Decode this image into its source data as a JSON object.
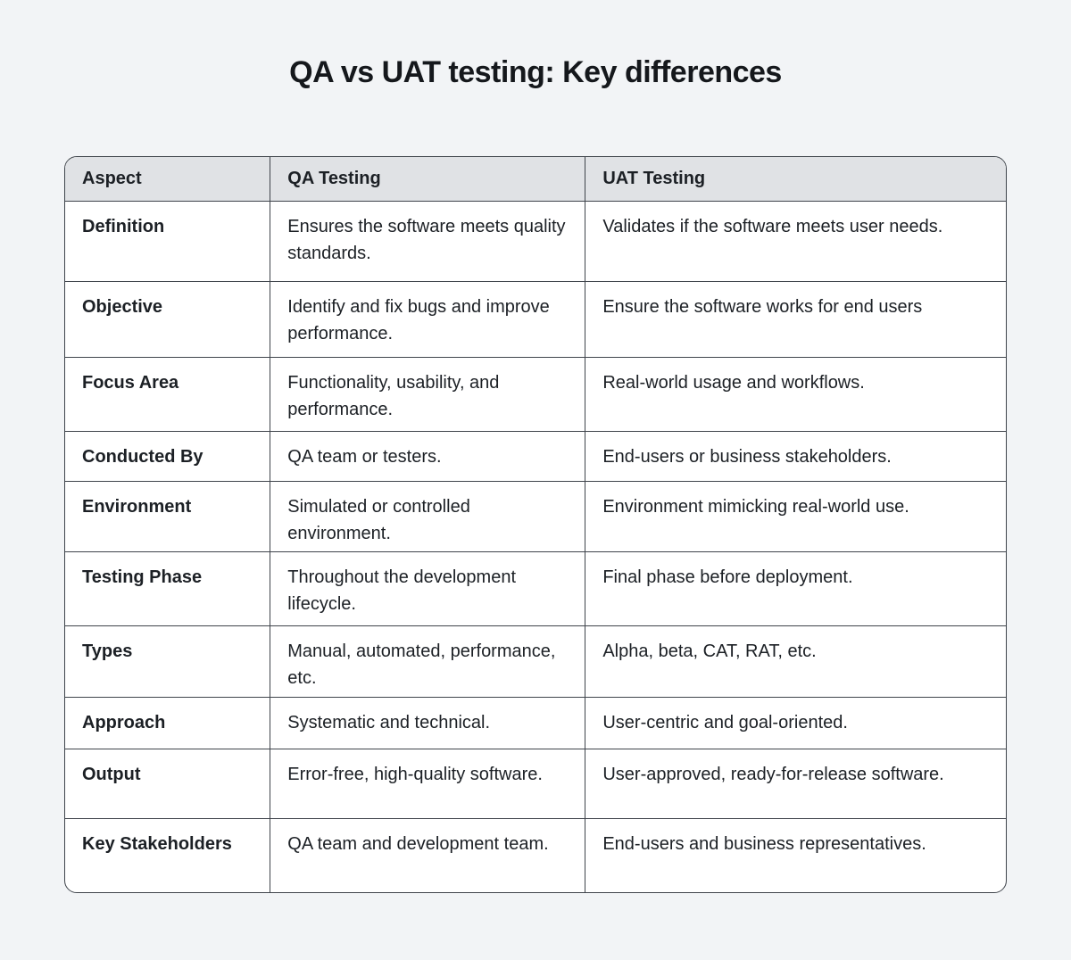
{
  "title": "QA vs UAT testing: Key differences",
  "colors": {
    "page_background": "#f2f4f6",
    "header_background": "#e0e2e5",
    "table_background": "#ffffff",
    "border": "#3f444b",
    "text": "#1c2025"
  },
  "chart_data": {
    "type": "table",
    "title": "QA vs UAT testing: Key differences",
    "columns": [
      "Aspect",
      "QA Testing",
      "UAT Testing"
    ],
    "rows": [
      [
        "Definition",
        "Ensures the software meets quality standards.",
        "Validates if the software meets user needs."
      ],
      [
        "Objective",
        "Identify and fix bugs and improve performance.",
        "Ensure the software works for end users"
      ],
      [
        "Focus Area",
        "Functionality, usability, and performance.",
        "Real-world usage and workflows."
      ],
      [
        "Conducted By",
        "QA team or testers.",
        "End-users or business stakeholders."
      ],
      [
        "Environment",
        "Simulated or controlled environment.",
        "Environment mimicking real-world use."
      ],
      [
        "Testing Phase",
        "Throughout the development lifecycle.",
        "Final phase before deployment."
      ],
      [
        "Types",
        "Manual, automated, performance, etc.",
        "Alpha, beta, CAT, RAT, etc."
      ],
      [
        "Approach",
        "Systematic and technical.",
        "User-centric and goal-oriented."
      ],
      [
        "Output",
        "Error-free, high-quality software.",
        "User-approved, ready-for-release software."
      ],
      [
        "Key Stakeholders",
        "QA team and development team.",
        "End-users and business representatives."
      ]
    ]
  }
}
